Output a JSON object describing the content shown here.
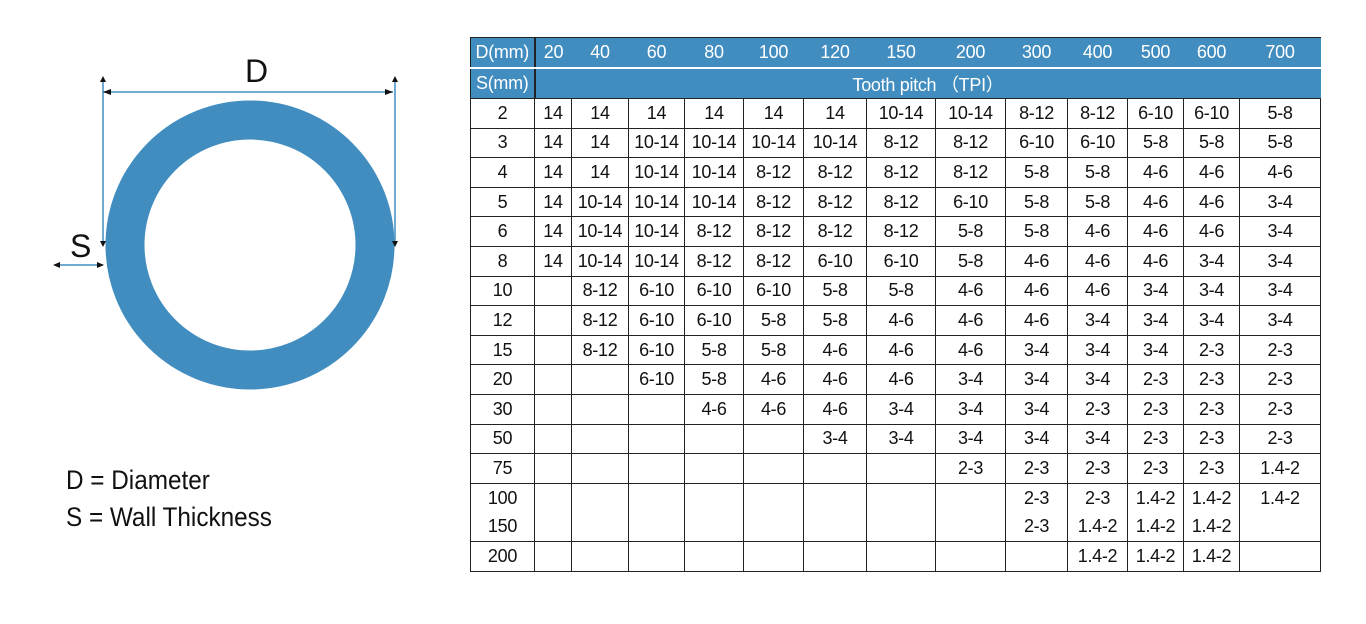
{
  "diagram": {
    "d_label": "D",
    "s_label": "S",
    "ring_color": "#418dc0",
    "line_color": "#418dc0"
  },
  "legend": {
    "d": "D = Diameter",
    "s": "S = Wall Thickness"
  },
  "table": {
    "header_color": "#418dc0",
    "d_header": "D(mm)",
    "s_header": "S(mm)",
    "span_label": "Tooth pitch （TPI）",
    "diameters": [
      "20",
      "40",
      "60",
      "80",
      "100",
      "120",
      "150",
      "200",
      "300",
      "400",
      "500",
      "600",
      "700"
    ],
    "rows": [
      {
        "s": "2",
        "v": [
          "14",
          "14",
          "14",
          "14",
          "14",
          "14",
          "10-14",
          "10-14",
          "8-12",
          "8-12",
          "6-10",
          "6-10",
          "5-8"
        ]
      },
      {
        "s": "3",
        "v": [
          "14",
          "14",
          "10-14",
          "10-14",
          "10-14",
          "10-14",
          "8-12",
          "8-12",
          "6-10",
          "6-10",
          "5-8",
          "5-8",
          "5-8"
        ]
      },
      {
        "s": "4",
        "v": [
          "14",
          "14",
          "10-14",
          "10-14",
          "8-12",
          "8-12",
          "8-12",
          "8-12",
          "5-8",
          "5-8",
          "4-6",
          "4-6",
          "4-6"
        ]
      },
      {
        "s": "5",
        "v": [
          "14",
          "10-14",
          "10-14",
          "10-14",
          "8-12",
          "8-12",
          "8-12",
          "6-10",
          "5-8",
          "5-8",
          "4-6",
          "4-6",
          "3-4"
        ]
      },
      {
        "s": "6",
        "v": [
          "14",
          "10-14",
          "10-14",
          "8-12",
          "8-12",
          "8-12",
          "8-12",
          "5-8",
          "5-8",
          "4-6",
          "4-6",
          "4-6",
          "3-4"
        ]
      },
      {
        "s": "8",
        "v": [
          "14",
          "10-14",
          "10-14",
          "8-12",
          "8-12",
          "6-10",
          "6-10",
          "5-8",
          "4-6",
          "4-6",
          "4-6",
          "3-4",
          "3-4"
        ]
      },
      {
        "s": "10",
        "v": [
          "",
          "8-12",
          "6-10",
          "6-10",
          "6-10",
          "5-8",
          "5-8",
          "4-6",
          "4-6",
          "4-6",
          "3-4",
          "3-4",
          "3-4"
        ]
      },
      {
        "s": "12",
        "v": [
          "",
          "8-12",
          "6-10",
          "6-10",
          "5-8",
          "5-8",
          "4-6",
          "4-6",
          "4-6",
          "3-4",
          "3-4",
          "3-4",
          "3-4"
        ]
      },
      {
        "s": "15",
        "v": [
          "",
          "8-12",
          "6-10",
          "5-8",
          "5-8",
          "4-6",
          "4-6",
          "4-6",
          "3-4",
          "3-4",
          "3-4",
          "2-3",
          "2-3"
        ]
      },
      {
        "s": "20",
        "v": [
          "",
          "",
          "6-10",
          "5-8",
          "4-6",
          "4-6",
          "4-6",
          "3-4",
          "3-4",
          "3-4",
          "2-3",
          "2-3",
          "2-3"
        ]
      },
      {
        "s": "30",
        "v": [
          "",
          "",
          "",
          "4-6",
          "4-6",
          "4-6",
          "3-4",
          "3-4",
          "3-4",
          "2-3",
          "2-3",
          "2-3",
          "2-3"
        ]
      },
      {
        "s": "50",
        "v": [
          "",
          "",
          "",
          "",
          "",
          "3-4",
          "3-4",
          "3-4",
          "3-4",
          "3-4",
          "2-3",
          "2-3",
          "2-3"
        ]
      },
      {
        "s": "75",
        "v": [
          "",
          "",
          "",
          "",
          "",
          "",
          "",
          "2-3",
          "2-3",
          "2-3",
          "2-3",
          "2-3",
          "1.4-2"
        ]
      },
      {
        "s": "100",
        "v": [
          "",
          "",
          "",
          "",
          "",
          "",
          "",
          "",
          "2-3",
          "2-3",
          "1.4-2",
          "1.4-2",
          "1.4-2"
        ]
      },
      {
        "s": "150",
        "v": [
          "",
          "",
          "",
          "",
          "",
          "",
          "",
          "",
          "2-3",
          "1.4-2",
          "1.4-2",
          "1.4-2",
          ""
        ]
      },
      {
        "s": "200",
        "v": [
          "",
          "",
          "",
          "",
          "",
          "",
          "",
          "",
          "",
          "1.4-2",
          "1.4-2",
          "1.4-2",
          ""
        ]
      }
    ]
  }
}
